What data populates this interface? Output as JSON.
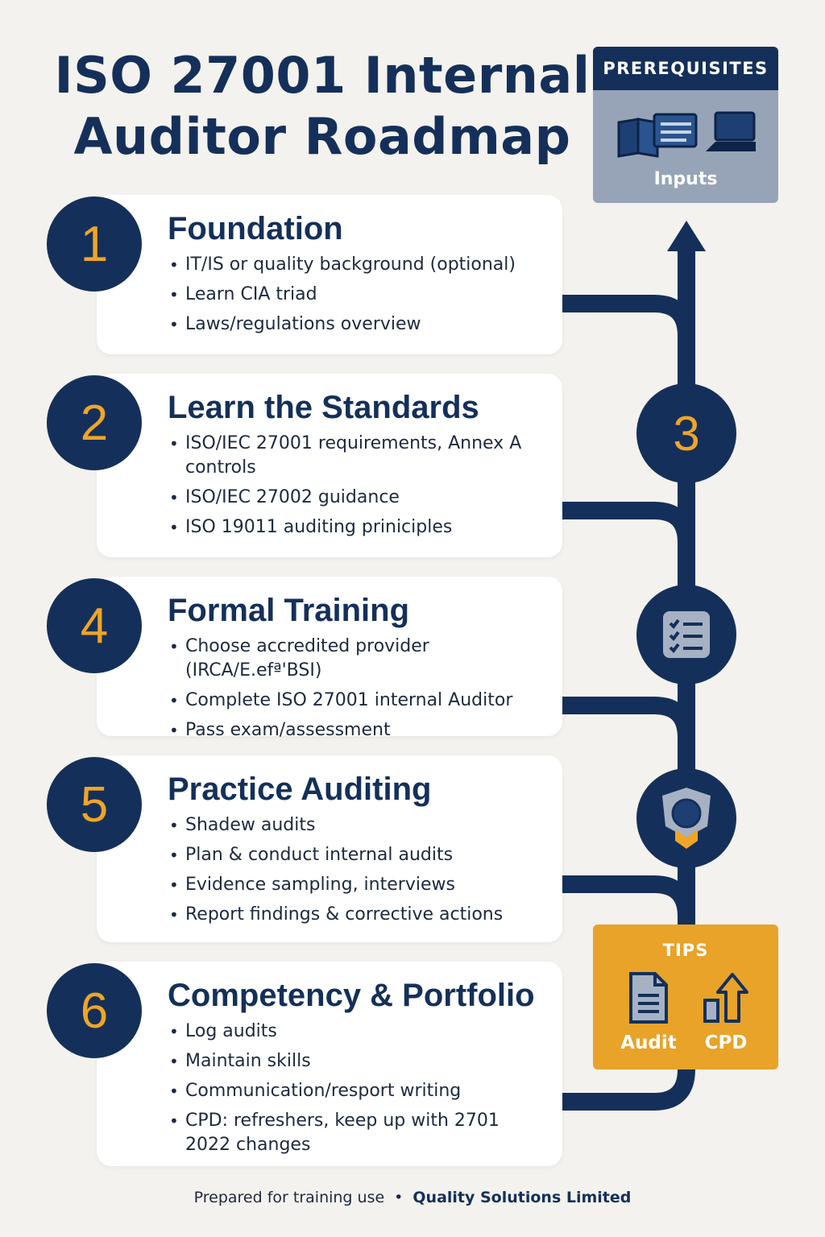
{
  "title": {
    "line1": "ISO 27001 Internal",
    "line2": "Auditor Roadmap"
  },
  "prerequisites": {
    "heading": "PREREQUISITES",
    "label": "Inputs",
    "icons": [
      "book-icon",
      "document-lines-icon",
      "laptop-icon"
    ]
  },
  "steps": [
    {
      "number": "1",
      "title": "Foundation",
      "bullets": [
        "IT/IS or quality background (optional)",
        "Learn CIA triad",
        "Laws/regulations overview"
      ]
    },
    {
      "number": "2",
      "title": "Learn the Standards",
      "bullets": [
        "ISO/IEC 27001 requirements, Annex A controls",
        "ISO/IEC 27002 guidance",
        "ISO 19011 auditing priniciples"
      ]
    },
    {
      "number": "4",
      "title": "Formal Training",
      "bullets": [
        "Choose accredited provider (IRCA/E.efª'BSI)",
        "Complete ISO 27001 internal Auditor",
        "Pass exam/assessment"
      ]
    },
    {
      "number": "5",
      "title": "Practice Auditing",
      "bullets": [
        "Shadew audits",
        "Plan & conduct internal audits",
        "Evidence sampling, interviews",
        "Report findings & corrective  actions"
      ]
    },
    {
      "number": "6",
      "title": "Competency & Portfolio",
      "bullets": [
        "Log audits",
        "Maintain skills",
        "Communication/resport writing",
        "CPD: refreshers, keep up with 2701 2022 changes"
      ]
    }
  ],
  "roadmap": {
    "milestone_number": "3",
    "milestone_icons": [
      "checklist-icon",
      "badge-award-icon"
    ]
  },
  "tips": {
    "heading": "TIPS",
    "items": [
      {
        "label": "Audit",
        "icon": "document-icon"
      },
      {
        "label": "CPD",
        "icon": "growth-arrow-icon"
      }
    ]
  },
  "footer": {
    "prepared": "Prepared for training use",
    "separator": "•",
    "organization": "Quality Solutions Limited"
  },
  "colors": {
    "navy": "#14305a",
    "gold": "#f0a526",
    "slate": "#97a4b7",
    "background": "#f4f2ee"
  }
}
